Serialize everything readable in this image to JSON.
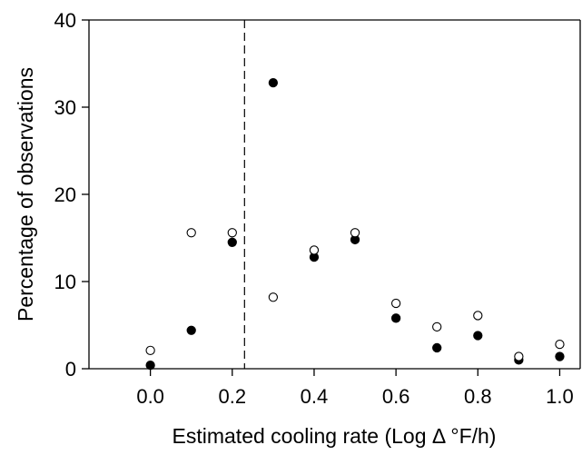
{
  "chart_data": {
    "type": "scatter",
    "title": "",
    "xlabel": "Estimated cooling rate (Log Δ °F/h)",
    "ylabel": "Percentage of observations",
    "xlim": [
      -0.15,
      1.05
    ],
    "ylim": [
      0,
      40
    ],
    "x_ticks": [
      "0.0",
      "0.2",
      "0.4",
      "0.6",
      "0.8",
      "1.0"
    ],
    "y_ticks": [
      "0",
      "10",
      "20",
      "30",
      "40"
    ],
    "grid": false,
    "reference_line": {
      "x": 0.23,
      "style": "dashed"
    },
    "series": [
      {
        "marker": "filled-circle",
        "x": [
          0.0,
          0.1,
          0.2,
          0.3,
          0.4,
          0.5,
          0.6,
          0.7,
          0.8,
          0.9,
          1.0
        ],
        "y": [
          0.4,
          4.4,
          14.5,
          32.8,
          12.8,
          14.8,
          5.8,
          2.4,
          3.8,
          1.0,
          1.4
        ]
      },
      {
        "marker": "open-circle",
        "x": [
          0.0,
          0.1,
          0.2,
          0.3,
          0.4,
          0.5,
          0.6,
          0.7,
          0.8,
          0.9,
          1.0
        ],
        "y": [
          2.1,
          15.6,
          15.6,
          8.2,
          13.6,
          15.6,
          7.5,
          4.8,
          6.1,
          1.4,
          2.8
        ]
      }
    ]
  }
}
